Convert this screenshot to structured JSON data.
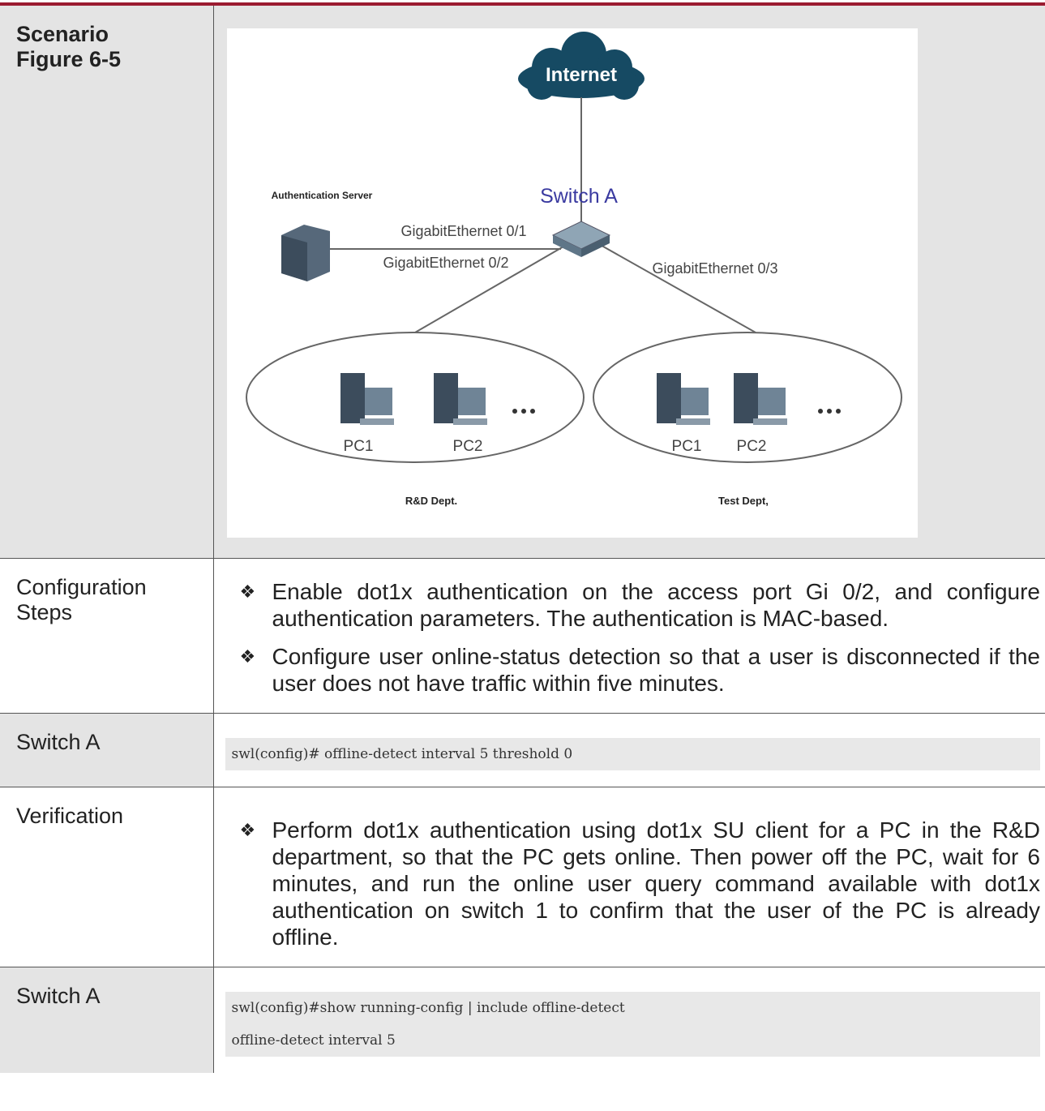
{
  "table": {
    "rows": [
      {
        "label": [
          "Scenario",
          "Figure 6-5"
        ]
      },
      {
        "label": "Configuration Steps",
        "bullets": [
          "Enable dot1x authentication on the access port Gi 0/2, and configure authentication parameters. The authentication is MAC-based.",
          "Configure user online-status detection so that a user is disconnected if the user does not have traffic within five minutes."
        ]
      },
      {
        "label": "Switch A",
        "code": [
          "swl(config)# offline-detect interval 5 threshold 0"
        ]
      },
      {
        "label": "Verification",
        "bullets": [
          "Perform dot1x authentication using dot1x SU client for a PC in the R&D department, so that the PC gets online. Then power off the PC, wait for 6 minutes, and run the online user query command available with dot1x authentication on switch 1 to confirm that the user of the PC is already offline."
        ]
      },
      {
        "label": "Switch A",
        "code": [
          "swl(config)#show running-config | include offline-detect",
          "offline-detect interval 5"
        ]
      }
    ]
  },
  "figure": {
    "internet": "Internet",
    "switch": "Switch A",
    "server": "Authentication Server",
    "ports": [
      "GigabitEthernet 0/1",
      "GigabitEthernet 0/2",
      "GigabitEthernet 0/3"
    ],
    "groups": [
      {
        "name": "R&D Dept.",
        "pcs": [
          "PC1",
          "PC2"
        ]
      },
      {
        "name": "Test Dept,",
        "pcs": [
          "PC1",
          "PC2"
        ]
      }
    ]
  }
}
